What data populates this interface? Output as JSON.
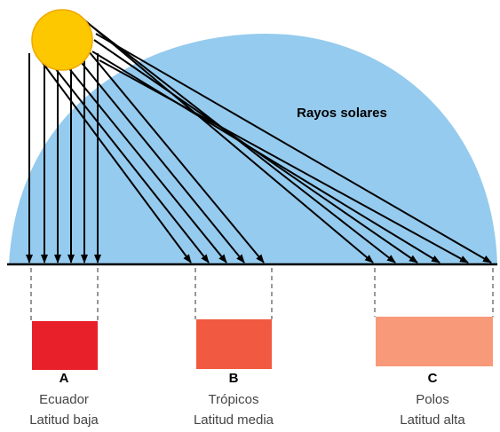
{
  "title": "Rayos solares",
  "zones": [
    {
      "letter": "A",
      "name": "Ecuador",
      "latitude": "Latitud baja"
    },
    {
      "letter": "B",
      "name": "Trópicos",
      "latitude": "Latitud media"
    },
    {
      "letter": "C",
      "name": "Polos",
      "latitude": "Latitud alta"
    }
  ]
}
